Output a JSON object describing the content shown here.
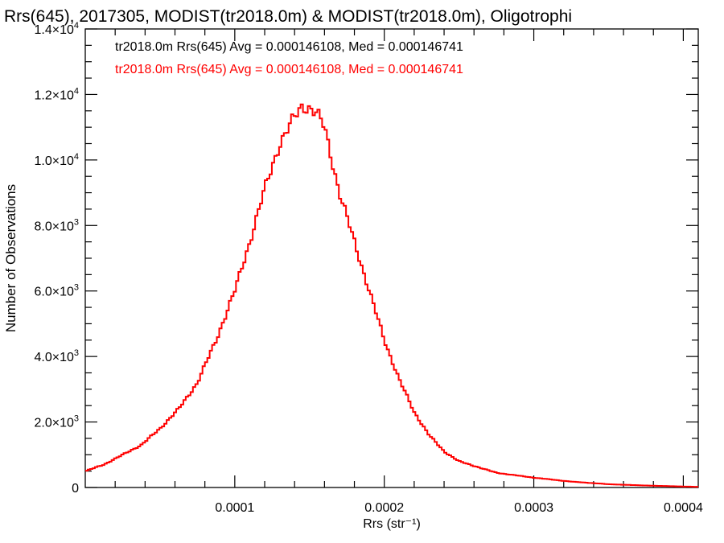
{
  "chart_data": {
    "type": "histogram-step",
    "title": "Rrs(645), 2017305, MODIST(tr2018.0m) & MODIST(tr2018.0m), Oligotrophi",
    "xlabel": "Rrs (str⁻¹)",
    "ylabel": "Number of Observations",
    "xlim": [
      0.0,
      0.00041
    ],
    "ylim": [
      0,
      14000
    ],
    "x_ticks": [
      {
        "value": 0.0001,
        "label": "0.0001"
      },
      {
        "value": 0.0002,
        "label": "0.0002"
      },
      {
        "value": 0.0003,
        "label": "0.0003"
      },
      {
        "value": 0.0004,
        "label": "0.0004"
      }
    ],
    "y_ticks": [
      {
        "value": 0,
        "mant": "0",
        "exp": ""
      },
      {
        "value": 2000,
        "mant": "2.0×10",
        "exp": "3"
      },
      {
        "value": 4000,
        "mant": "4.0×10",
        "exp": "3"
      },
      {
        "value": 6000,
        "mant": "6.0×10",
        "exp": "3"
      },
      {
        "value": 8000,
        "mant": "8.0×10",
        "exp": "3"
      },
      {
        "value": 10000,
        "mant": "1.0×10",
        "exp": "4"
      },
      {
        "value": 12000,
        "mant": "1.2×10",
        "exp": "4"
      },
      {
        "value": 14000,
        "mant": "1.4×10",
        "exp": "4"
      }
    ],
    "annotations": [
      {
        "text": "tr2018.0m Rrs(645) Avg = 0.000146108, Med = 0.000146741",
        "color": "#000000"
      },
      {
        "text": "tr2018.0m Rrs(645) Avg = 0.000146108, Med = 0.000146741",
        "color": "#ff0000"
      }
    ],
    "series": [
      {
        "color": "#ff0000",
        "x": [
          0.0,
          1.25e-05,
          2.5e-05,
          3.75e-05,
          5e-05,
          6.25e-05,
          7.5e-05,
          8.75e-05,
          0.0001,
          0.00011,
          0.00012,
          0.00013,
          0.00014,
          0.000145,
          0.00015,
          0.000155,
          0.00016,
          0.000165,
          0.00017,
          0.00018,
          0.00019,
          0.0002,
          0.00021,
          0.00022,
          0.00023,
          0.00024,
          0.00025,
          0.000275,
          0.0003,
          0.000325,
          0.00035,
          0.000375,
          0.0004,
          0.00041
        ],
        "values": [
          500,
          700,
          1000,
          1300,
          1800,
          2400,
          3200,
          4500,
          6000,
          7500,
          9100,
          10500,
          11300,
          11650,
          11600,
          11400,
          11000,
          10000,
          9000,
          7500,
          6000,
          4500,
          3300,
          2300,
          1600,
          1100,
          800,
          450,
          300,
          180,
          100,
          60,
          30,
          20
        ]
      }
    ]
  }
}
